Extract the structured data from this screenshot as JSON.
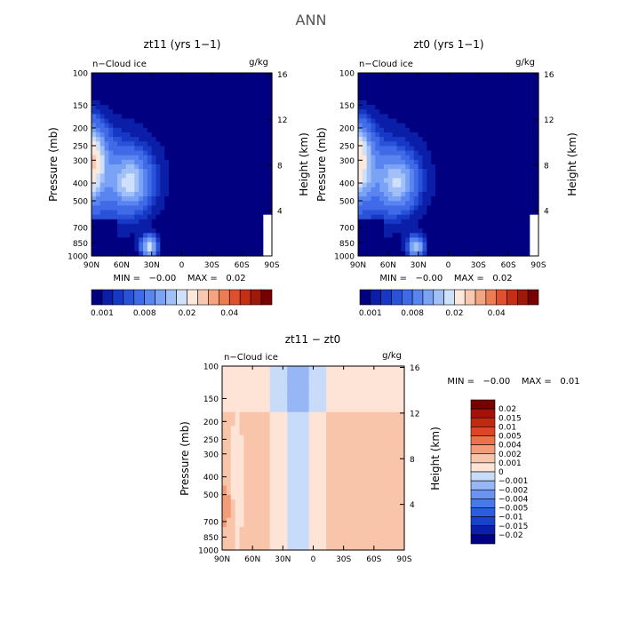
{
  "title": "ANN",
  "colors": {
    "cbar_main": [
      "#000080",
      "#0b1ea8",
      "#1638c4",
      "#2a52d8",
      "#3f6ae8",
      "#5a85f0",
      "#7aa3f5",
      "#a2c0f8",
      "#cfe0fb",
      "#fde8de",
      "#f8c8b0",
      "#f3a480",
      "#ec7c52",
      "#e0502c",
      "#c62f14",
      "#a01808",
      "#780000"
    ],
    "cbar_diff": [
      "#000080",
      "#0a20aa",
      "#1642cc",
      "#2a5ee0",
      "#4878ec",
      "#6a94f2",
      "#96b6f6",
      "#c8dcfa",
      "#fde4d6",
      "#f8c4aa",
      "#f39c78",
      "#ec724a",
      "#dc4628",
      "#c22a10",
      "#a01408",
      "#7a0000"
    ]
  },
  "chart_data": [
    {
      "type": "heatmap",
      "name": "zt11",
      "title": "zt11 (yrs 1−1)",
      "left_label": "n−Cloud ice",
      "right_label": "g/kg",
      "ylabel": "Pressure (mb)",
      "y2label": "Height (km)",
      "x_ticks": [
        "90N",
        "60N",
        "30N",
        "0",
        "30S",
        "60S",
        "90S"
      ],
      "y_ticks": [
        "100",
        "150",
        "200",
        "250",
        "300",
        "400",
        "500",
        "700",
        "850",
        "1000"
      ],
      "y2_ticks": [
        "16",
        "12",
        "8",
        "4"
      ],
      "min_max": "MIN =   −0.00    MAX =   0.02",
      "colorbar_labels": [
        "0.001",
        "0.008",
        "0.02",
        "0.04"
      ]
    },
    {
      "type": "heatmap",
      "name": "zt0",
      "title": "zt0 (yrs 1−1)",
      "left_label": "n−Cloud ice",
      "right_label": "g/kg",
      "ylabel": "Pressure (mb)",
      "y2label": "Height (km)",
      "x_ticks": [
        "90N",
        "60N",
        "30N",
        "0",
        "30S",
        "60S",
        "90S"
      ],
      "y_ticks": [
        "100",
        "150",
        "200",
        "250",
        "300",
        "400",
        "500",
        "700",
        "850",
        "1000"
      ],
      "y2_ticks": [
        "16",
        "12",
        "8",
        "4"
      ],
      "min_max": "MIN =   −0.00    MAX =   0.02",
      "colorbar_labels": [
        "0.001",
        "0.008",
        "0.02",
        "0.04"
      ]
    },
    {
      "type": "heatmap",
      "name": "diff",
      "title": "zt11 − zt0",
      "left_label": "n−Cloud ice",
      "right_label": "g/kg",
      "ylabel": "Pressure (mb)",
      "y2label": "Height (km)",
      "x_ticks": [
        "90N",
        "60N",
        "30N",
        "0",
        "30S",
        "60S",
        "90S"
      ],
      "y_ticks": [
        "100",
        "150",
        "200",
        "250",
        "300",
        "400",
        "500",
        "700",
        "850",
        "1000"
      ],
      "y2_ticks": [
        "16",
        "12",
        "8",
        "4"
      ],
      "min_max": "MIN =   −0.00    MAX =   0.01",
      "colorbar_labels": [
        "0.02",
        "0.015",
        "0.01",
        "0.005",
        "0.004",
        "0.002",
        "0.001",
        "0",
        "−0.001",
        "−0.002",
        "−0.004",
        "−0.005",
        "−0.01",
        "−0.015",
        "−0.02"
      ]
    }
  ]
}
